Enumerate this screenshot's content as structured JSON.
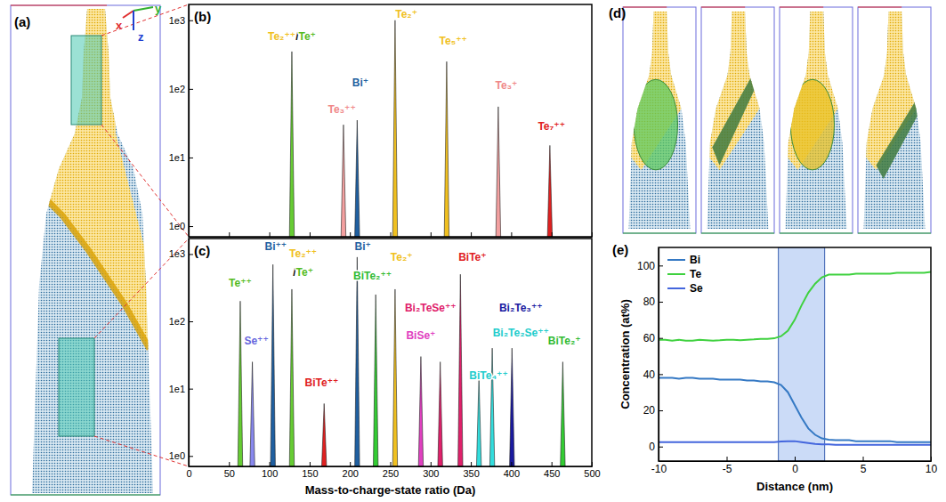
{
  "chart_data": [
    {
      "panel": "(b)",
      "type": "spectrum",
      "log": "y",
      "tick_labels": "y",
      "xlim": [
        0,
        500
      ],
      "xticks": [
        0,
        50,
        100,
        150,
        200,
        250,
        300,
        350,
        400,
        450,
        500
      ],
      "ylim": [
        0.7,
        1700
      ],
      "yticks": [
        {
          "value": 1,
          "label": "1e0"
        },
        {
          "value": 10,
          "label": "1e1"
        },
        {
          "value": 100,
          "label": "1e2"
        },
        {
          "value": 1000,
          "label": "1e3"
        }
      ],
      "x": [
        128,
        192,
        209,
        256,
        320,
        384,
        448
      ],
      "values": [
        350,
        30,
        35,
        1000,
        250,
        55,
        15
      ],
      "colors": [
        "#66cc33",
        "#f4a0a0",
        "#1f5fa0",
        "#f0c020",
        "#f0c020",
        "#f4a0a0",
        "#e02020"
      ],
      "annotations": [
        {
          "parts": [
            {
              "text": "Te₂⁺⁺",
              "color": "#f0c020"
            },
            {
              "text": "/",
              "color": "#000000"
            },
            {
              "text": "Te⁺",
              "color": "#55bb22"
            }
          ],
          "x": 128,
          "y": 520
        },
        {
          "text": "Te₃⁺⁺",
          "color": "#f08888",
          "x": 190,
          "y": 45
        },
        {
          "text": "Bi⁺",
          "color": "#1f5fa0",
          "x": 213,
          "y": 110
        },
        {
          "text": "Te₂⁺",
          "color": "#f0c020",
          "x": 270,
          "y": 1100
        },
        {
          "text": "Te₅⁺⁺",
          "color": "#f0c020",
          "x": 328,
          "y": 450
        },
        {
          "text": "Te₃⁺",
          "color": "#f08888",
          "x": 394,
          "y": 100
        },
        {
          "text": "Te₇⁺⁺",
          "color": "#e02020",
          "x": 450,
          "y": 25
        }
      ]
    },
    {
      "panel": "(c)",
      "type": "spectrum",
      "log": "y",
      "x_label": "Mass-to-charge-state ratio (Da)",
      "xlim": [
        0,
        500
      ],
      "xticks": [
        0,
        50,
        100,
        150,
        200,
        250,
        300,
        350,
        400,
        450,
        500
      ],
      "ylim": [
        0.7,
        1700
      ],
      "yticks": [
        {
          "value": 1,
          "label": "1e0"
        },
        {
          "value": 10,
          "label": "1e1"
        },
        {
          "value": 100,
          "label": "1e2"
        },
        {
          "value": 1000,
          "label": "1e3"
        }
      ],
      "x": [
        64,
        79,
        104.5,
        128,
        168,
        209,
        232,
        256,
        288,
        312,
        337,
        360,
        376.5,
        401,
        464
      ],
      "values": [
        200,
        25,
        700,
        300,
        6,
        900,
        250,
        300,
        30,
        25,
        500,
        15,
        40,
        40,
        25
      ],
      "colors": [
        "#66cc33",
        "#8888ee",
        "#1f5fa0",
        "#66cc33",
        "#e02020",
        "#1f5fa0",
        "#33cc33",
        "#f0c020",
        "#e040c0",
        "#e0206a",
        "#e0206a",
        "#33dddd",
        "#33dddd",
        "#1a1aa0",
        "#33cc33"
      ],
      "annotations": [
        {
          "text": "Te⁺⁺",
          "color": "#55bb22",
          "x": 64,
          "y": 330
        },
        {
          "text": "Se⁺⁺",
          "color": "#6666dd",
          "x": 84,
          "y": 45
        },
        {
          "text": "Bi⁺⁺",
          "color": "#1f5fa0",
          "x": 108,
          "y": 1150
        },
        {
          "text": "Te₂⁺⁺",
          "color": "#f0c020",
          "x": 142,
          "y": 900
        },
        {
          "parts": [
            {
              "text": "/",
              "color": "#000000"
            },
            {
              "text": "Te⁺",
              "color": "#55bb22"
            }
          ],
          "x": 142,
          "y": 480
        },
        {
          "text": "BiTe⁺⁺",
          "color": "#e02020",
          "x": 165,
          "y": 11
        },
        {
          "text": "Bi⁺",
          "color": "#1f5fa0",
          "x": 216,
          "y": 1150
        },
        {
          "text": "BiTe₂⁺⁺",
          "color": "#33bb33",
          "x": 228,
          "y": 420
        },
        {
          "text": "Te₂⁺",
          "color": "#f0c020",
          "x": 264,
          "y": 800
        },
        {
          "text": "BiTe⁺",
          "color": "#e02020",
          "x": 352,
          "y": 800
        },
        {
          "text": "Bi₂TeSe⁺⁺",
          "color": "#e0206a",
          "x": 300,
          "y": 140
        },
        {
          "text": "BiSe⁺",
          "color": "#e040c0",
          "x": 288,
          "y": 55
        },
        {
          "text": "Bi₂Te₃⁺⁺",
          "color": "#1a1aa0",
          "x": 412,
          "y": 140
        },
        {
          "text": "Bi₂Te₂Se⁺⁺",
          "color": "#22cccc",
          "x": 412,
          "y": 60
        },
        {
          "text": "BiTe₄⁺⁺",
          "color": "#22cccc",
          "x": 372,
          "y": 14
        },
        {
          "text": "BiTe₂⁺",
          "color": "#33bb33",
          "x": 466,
          "y": 45
        }
      ]
    },
    {
      "panel": "(e)",
      "type": "line",
      "x_label": "Distance (nm)",
      "y_label": "Concentration (at%)",
      "xlim": [
        -10,
        10
      ],
      "xticks": [
        -10,
        -5,
        0,
        5,
        10
      ],
      "ylim": [
        -8,
        110
      ],
      "yticks": [
        0,
        20,
        40,
        60,
        80,
        100
      ],
      "legend": "top-left",
      "highlight": [
        -1.2,
        2.2
      ],
      "x": [
        -10,
        -9.5,
        -9,
        -8.5,
        -8,
        -7.5,
        -7,
        -6.5,
        -6,
        -5.5,
        -5,
        -4.5,
        -4,
        -3.5,
        -3,
        -2.5,
        -2,
        -1.5,
        -1,
        -0.5,
        0,
        0.5,
        1,
        1.5,
        2,
        2.5,
        3,
        3.5,
        4,
        4.5,
        5,
        5.5,
        6,
        6.5,
        7,
        7.5,
        8,
        8.5,
        9,
        9.5,
        10
      ],
      "series": [
        {
          "name": "Bi",
          "color": "#3579c4",
          "values": [
            38,
            38,
            38,
            37.5,
            38,
            38,
            37.5,
            37.5,
            37.5,
            37,
            37,
            37,
            37,
            36.5,
            36.5,
            36,
            36,
            35.5,
            34,
            30,
            23,
            16,
            10,
            6.5,
            4.5,
            3.8,
            3.5,
            3.5,
            3.5,
            3,
            3,
            3,
            3,
            3,
            3,
            2.5,
            2.5,
            2.5,
            2.5,
            2.5,
            2.5
          ]
        },
        {
          "name": "Te",
          "color": "#3fd13f",
          "values": [
            59,
            59,
            58.5,
            59,
            58.5,
            58.5,
            59,
            58.8,
            58.5,
            58.7,
            59,
            59,
            58.8,
            59,
            59.2,
            59.5,
            59.5,
            59.8,
            61,
            64,
            70,
            78,
            85,
            90,
            93.5,
            95,
            95,
            95,
            95,
            95.5,
            95.5,
            95.5,
            95.5,
            95.5,
            95.5,
            96,
            96,
            96,
            96,
            96,
            96.5
          ]
        },
        {
          "name": "Se",
          "color": "#4466dd",
          "values": [
            2.5,
            2.5,
            2.5,
            2.5,
            2.5,
            2.5,
            2.5,
            2.5,
            2.5,
            2.5,
            2.5,
            2.5,
            2.5,
            2.5,
            2.5,
            2.5,
            2.5,
            2.5,
            2.8,
            3,
            3,
            2.5,
            2,
            1.5,
            1.2,
            1.2,
            1,
            1,
            1,
            1,
            1,
            1,
            1,
            1,
            1,
            1,
            1,
            1,
            1,
            1,
            1
          ]
        }
      ]
    }
  ],
  "illustrations": [
    {
      "panel": "(a)",
      "axis_labels": [
        "x",
        "y",
        "z"
      ]
    },
    {
      "panel": "(d)"
    }
  ]
}
